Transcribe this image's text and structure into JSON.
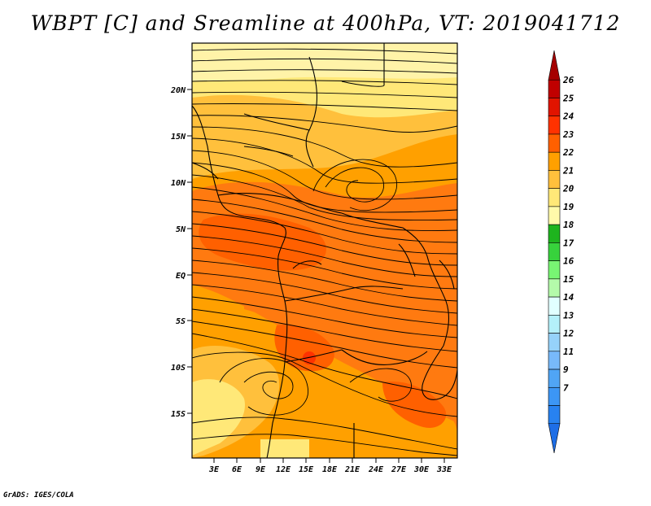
{
  "title": "WBPT [C] and Sreamline at 400hPa, VT: 2019041712",
  "credit": "GrADS: IGES/COLA",
  "map": {
    "lat_labels": [
      "20N",
      "15N",
      "10N",
      "5N",
      "EQ",
      "5S",
      "10S",
      "15S"
    ],
    "lon_labels": [
      "3E",
      "6E",
      "9E",
      "12E",
      "15E",
      "18E",
      "21E",
      "24E",
      "27E",
      "30E",
      "33E"
    ]
  },
  "colorbar": {
    "labels": [
      "7",
      "9",
      "11",
      "12",
      "13",
      "14",
      "15",
      "16",
      "17",
      "18",
      "19",
      "20",
      "21",
      "22",
      "23",
      "24",
      "25",
      "26"
    ],
    "colors": [
      "#1e6ee6",
      "#2882f0",
      "#3c96f5",
      "#50a5f5",
      "#78b9fa",
      "#96d2fa",
      "#b4f0fa",
      "#e1ffff",
      "#b4faaa",
      "#78f573",
      "#37d23c",
      "#1eb41e",
      "#fffaaa",
      "#ffe878",
      "#ffc03c",
      "#ffa000",
      "#ff6000",
      "#ff3200",
      "#e11400",
      "#c00000",
      "#a50000"
    ]
  }
}
